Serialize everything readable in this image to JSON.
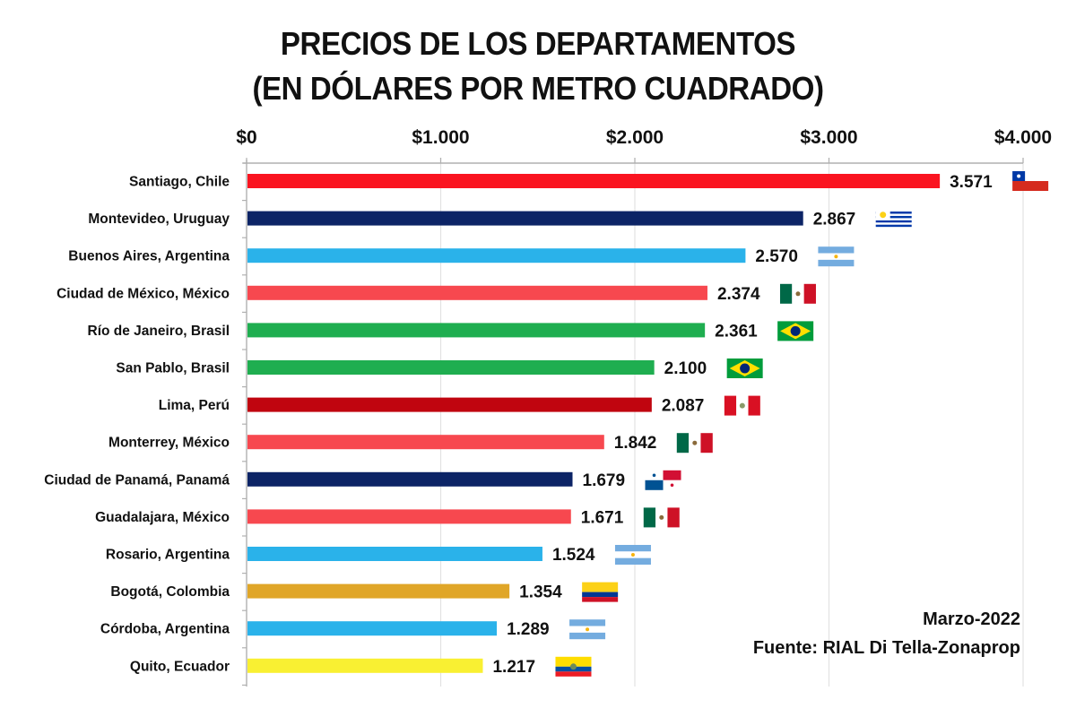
{
  "chart_data": {
    "type": "bar",
    "orientation": "horizontal",
    "title": "PRECIOS DE LOS DEPARTAMENTOS",
    "subtitle": "(EN DÓLARES POR METRO CUADRADO)",
    "xlabel": "",
    "ylabel": "",
    "xlim": [
      0,
      4000
    ],
    "x_ticks": [
      0,
      1000,
      2000,
      3000,
      4000
    ],
    "x_tick_labels": [
      "$0",
      "$1.000",
      "$2.000",
      "$3.000",
      "$4.000"
    ],
    "x_axis_position": "top",
    "grid": true,
    "legend": "none",
    "categories": [
      "Santiago, Chile",
      "Montevideo, Uruguay",
      "Buenos Aires, Argentina",
      "Ciudad de México, México",
      "Río de Janeiro, Brasil",
      "San Pablo, Brasil",
      "Lima, Perú",
      "Monterrey, México",
      "Ciudad de Panamá, Panamá",
      "Guadalajara, México",
      "Rosario, Argentina",
      "Bogotá, Colombia",
      "Córdoba, Argentina",
      "Quito, Ecuador"
    ],
    "values": [
      3571,
      2867,
      2570,
      2374,
      2361,
      2100,
      2087,
      1842,
      1679,
      1671,
      1524,
      1354,
      1289,
      1217
    ],
    "value_labels": [
      "3.571",
      "2.867",
      "2.570",
      "2.374",
      "2.361",
      "2.100",
      "2.087",
      "1.842",
      "1.679",
      "1.671",
      "1.524",
      "1.354",
      "1.289",
      "1.217"
    ],
    "bar_colors": [
      "#fa1420",
      "#0c2466",
      "#2ab2ea",
      "#f7484f",
      "#1fae50",
      "#1fae50",
      "#c0050f",
      "#f7484f",
      "#0c2466",
      "#f7484f",
      "#2ab2ea",
      "#e0a628",
      "#2ab2ea",
      "#f9f032"
    ],
    "flags": [
      "chile",
      "uruguay",
      "argentina",
      "mexico",
      "brazil",
      "brazil",
      "peru",
      "mexico",
      "panama",
      "mexico",
      "argentina",
      "colombia",
      "argentina",
      "ecuador"
    ],
    "annotations": [
      "Marzo-2022",
      "Fuente: RIAL Di Tella-Zonaprop"
    ]
  },
  "header": {
    "title_line1": "PRECIOS DE LOS DEPARTAMENTOS",
    "title_line2": "(EN DÓLARES POR METRO CUADRADO)"
  },
  "notes": {
    "date": "Marzo-2022",
    "source": "Fuente: RIAL Di Tella-Zonaprop"
  },
  "colors": {
    "axis": "#b0b0b0",
    "grid": "#e2e2e2",
    "text": "#111111"
  }
}
